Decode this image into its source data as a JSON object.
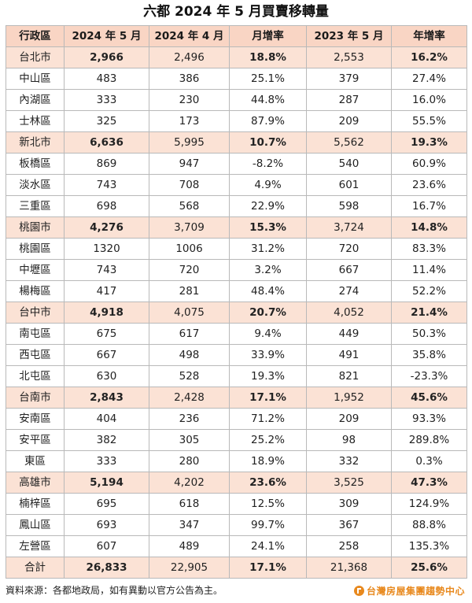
{
  "title": "六都 2024 年 5 月買賣移轉量",
  "headers": [
    "行政區",
    "2024 年 5 月",
    "2024 年 4 月",
    "月增率",
    "2023 年 5 月",
    "年增率"
  ],
  "rows": [
    {
      "name": "台北市",
      "type": "city",
      "may2024": "2,966",
      "apr2024": "2,496",
      "mom": "18.8%",
      "may2023": "2,553",
      "yoy": "16.2%"
    },
    {
      "name": "中山區",
      "type": "district",
      "may2024": "483",
      "apr2024": "386",
      "mom": "25.1%",
      "may2023": "379",
      "yoy": "27.4%"
    },
    {
      "name": "內湖區",
      "type": "district",
      "may2024": "333",
      "apr2024": "230",
      "mom": "44.8%",
      "may2023": "287",
      "yoy": "16.0%"
    },
    {
      "name": "士林區",
      "type": "district",
      "may2024": "325",
      "apr2024": "173",
      "mom": "87.9%",
      "may2023": "209",
      "yoy": "55.5%"
    },
    {
      "name": "新北市",
      "type": "city",
      "may2024": "6,636",
      "apr2024": "5,995",
      "mom": "10.7%",
      "may2023": "5,562",
      "yoy": "19.3%"
    },
    {
      "name": "板橋區",
      "type": "district",
      "may2024": "869",
      "apr2024": "947",
      "mom": "-8.2%",
      "may2023": "540",
      "yoy": "60.9%"
    },
    {
      "name": "淡水區",
      "type": "district",
      "may2024": "743",
      "apr2024": "708",
      "mom": "4.9%",
      "may2023": "601",
      "yoy": "23.6%"
    },
    {
      "name": "三重區",
      "type": "district",
      "may2024": "698",
      "apr2024": "568",
      "mom": "22.9%",
      "may2023": "598",
      "yoy": "16.7%"
    },
    {
      "name": "桃園市",
      "type": "city",
      "may2024": "4,276",
      "apr2024": "3,709",
      "mom": "15.3%",
      "may2023": "3,724",
      "yoy": "14.8%"
    },
    {
      "name": "桃園區",
      "type": "district",
      "may2024": "1320",
      "apr2024": "1006",
      "mom": "31.2%",
      "may2023": "720",
      "yoy": "83.3%"
    },
    {
      "name": "中壢區",
      "type": "district",
      "may2024": "743",
      "apr2024": "720",
      "mom": "3.2%",
      "may2023": "667",
      "yoy": "11.4%"
    },
    {
      "name": "楊梅區",
      "type": "district",
      "may2024": "417",
      "apr2024": "281",
      "mom": "48.4%",
      "may2023": "274",
      "yoy": "52.2%"
    },
    {
      "name": "台中市",
      "type": "city",
      "may2024": "4,918",
      "apr2024": "4,075",
      "mom": "20.7%",
      "may2023": "4,052",
      "yoy": "21.4%"
    },
    {
      "name": "南屯區",
      "type": "district",
      "may2024": "675",
      "apr2024": "617",
      "mom": "9.4%",
      "may2023": "449",
      "yoy": "50.3%"
    },
    {
      "name": "西屯區",
      "type": "district",
      "may2024": "667",
      "apr2024": "498",
      "mom": "33.9%",
      "may2023": "491",
      "yoy": "35.8%"
    },
    {
      "name": "北屯區",
      "type": "district",
      "may2024": "630",
      "apr2024": "528",
      "mom": "19.3%",
      "may2023": "821",
      "yoy": "-23.3%"
    },
    {
      "name": "台南市",
      "type": "city",
      "may2024": "2,843",
      "apr2024": "2,428",
      "mom": "17.1%",
      "may2023": "1,952",
      "yoy": "45.6%"
    },
    {
      "name": "安南區",
      "type": "district",
      "may2024": "404",
      "apr2024": "236",
      "mom": "71.2%",
      "may2023": "209",
      "yoy": "93.3%"
    },
    {
      "name": "安平區",
      "type": "district",
      "may2024": "382",
      "apr2024": "305",
      "mom": "25.2%",
      "may2023": "98",
      "yoy": "289.8%"
    },
    {
      "name": "東區",
      "type": "district",
      "may2024": "333",
      "apr2024": "280",
      "mom": "18.9%",
      "may2023": "332",
      "yoy": "0.3%"
    },
    {
      "name": "高雄市",
      "type": "city",
      "may2024": "5,194",
      "apr2024": "4,202",
      "mom": "23.6%",
      "may2023": "3,525",
      "yoy": "47.3%"
    },
    {
      "name": "楠梓區",
      "type": "district",
      "may2024": "695",
      "apr2024": "618",
      "mom": "12.5%",
      "may2023": "309",
      "yoy": "124.9%"
    },
    {
      "name": "鳳山區",
      "type": "district",
      "may2024": "693",
      "apr2024": "347",
      "mom": "99.7%",
      "may2023": "367",
      "yoy": "88.8%"
    },
    {
      "name": "左營區",
      "type": "district",
      "may2024": "607",
      "apr2024": "489",
      "mom": "24.1%",
      "may2023": "258",
      "yoy": "135.3%"
    },
    {
      "name": "合計",
      "type": "total",
      "may2024": "26,833",
      "apr2024": "22,905",
      "mom": "17.1%",
      "may2023": "21,368",
      "yoy": "25.6%"
    }
  ],
  "footer": {
    "source": "資料來源：各都地政局，如有異動以官方公告為主。",
    "logo_text": "台灣房屋集團趨勢中心",
    "logo_icon": "house-logo-icon"
  },
  "colors": {
    "header_bg": "#f9d5c4",
    "city_row_bg": "#fbe2d5",
    "border": "#b9b9b9",
    "logo": "#e8891e"
  }
}
